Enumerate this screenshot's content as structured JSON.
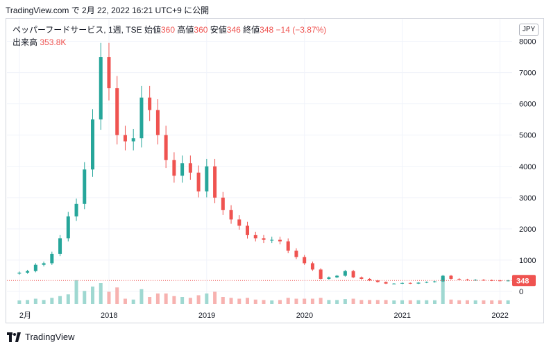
{
  "header": {
    "published": "TradingView.com で 2月 22, 2022 16:21 UTC+9 に公開"
  },
  "legend": {
    "symbol": "ペッパーフードサービス, 1週, TSE",
    "open_label": "始値",
    "open": "360",
    "high_label": "高値",
    "high": "360",
    "low_label": "安値",
    "low": "346",
    "close_label": "終値",
    "close": "348",
    "change": "−14 (−3.87%)",
    "volume_label": "出来高",
    "volume": "353.8K"
  },
  "currency": "JPY",
  "footer": {
    "brand": "TradingView"
  },
  "colors": {
    "up": "#26a69a",
    "down": "#ef5350",
    "grid": "#f0f3fa",
    "price_line": "#ef5350"
  },
  "chart_data": {
    "type": "candlestick",
    "y_ticks": [
      "0",
      "1000",
      "2000",
      "3000",
      "4000",
      "5000",
      "6000",
      "7000",
      "8000"
    ],
    "y_tick_values": [
      0,
      1000,
      2000,
      3000,
      4000,
      5000,
      6000,
      7000,
      8000
    ],
    "ylim": [
      -400,
      8700
    ],
    "x_ticks": [
      "2月",
      "2018",
      "2019",
      "2020",
      "2021",
      "2022"
    ],
    "x_tick_dates": [
      "2017-02",
      "2018-01",
      "2019-01",
      "2020-01",
      "2021-01",
      "2022-01"
    ],
    "xlim": [
      "2017-02",
      "2022-02"
    ],
    "last_price": "348",
    "series": [
      {
        "date": "2017-02",
        "close": 600
      },
      {
        "date": "2017-03",
        "close": 650
      },
      {
        "date": "2017-04",
        "close": 850
      },
      {
        "date": "2017-05",
        "close": 900
      },
      {
        "date": "2017-06",
        "close": 1200
      },
      {
        "date": "2017-07",
        "close": 1700
      },
      {
        "date": "2017-08",
        "close": 2400
      },
      {
        "date": "2017-09",
        "close": 2800
      },
      {
        "date": "2017-10",
        "close": 3900
      },
      {
        "date": "2017-11",
        "close": 5500
      },
      {
        "date": "2017-12",
        "close": 7500
      },
      {
        "date": "2018-01",
        "close": 6500
      },
      {
        "date": "2018-02",
        "close": 5000
      },
      {
        "date": "2018-03",
        "close": 4800
      },
      {
        "date": "2018-04",
        "close": 4900
      },
      {
        "date": "2018-05",
        "close": 6200
      },
      {
        "date": "2018-06",
        "close": 5800
      },
      {
        "date": "2018-07",
        "close": 5000
      },
      {
        "date": "2018-08",
        "close": 4200
      },
      {
        "date": "2018-09",
        "close": 3700
      },
      {
        "date": "2018-10",
        "close": 4100
      },
      {
        "date": "2018-11",
        "close": 3800
      },
      {
        "date": "2018-12",
        "close": 3200
      },
      {
        "date": "2019-01",
        "close": 4000
      },
      {
        "date": "2019-02",
        "close": 3000
      },
      {
        "date": "2019-03",
        "close": 2600
      },
      {
        "date": "2019-04",
        "close": 2300
      },
      {
        "date": "2019-05",
        "close": 2100
      },
      {
        "date": "2019-06",
        "close": 1800
      },
      {
        "date": "2019-07",
        "close": 1700
      },
      {
        "date": "2019-08",
        "close": 1650
      },
      {
        "date": "2019-09",
        "close": 1650
      },
      {
        "date": "2019-10",
        "close": 1600
      },
      {
        "date": "2019-11",
        "close": 1300
      },
      {
        "date": "2019-12",
        "close": 1100
      },
      {
        "date": "2020-01",
        "close": 900
      },
      {
        "date": "2020-02",
        "close": 700
      },
      {
        "date": "2020-03",
        "close": 400
      },
      {
        "date": "2020-04",
        "close": 450
      },
      {
        "date": "2020-05",
        "close": 500
      },
      {
        "date": "2020-06",
        "close": 650
      },
      {
        "date": "2020-07",
        "close": 450
      },
      {
        "date": "2020-08",
        "close": 400
      },
      {
        "date": "2020-09",
        "close": 350
      },
      {
        "date": "2020-10",
        "close": 300
      },
      {
        "date": "2020-11",
        "close": 250
      },
      {
        "date": "2020-12",
        "close": 250
      },
      {
        "date": "2021-01",
        "close": 270
      },
      {
        "date": "2021-02",
        "close": 250
      },
      {
        "date": "2021-03",
        "close": 280
      },
      {
        "date": "2021-04",
        "close": 300
      },
      {
        "date": "2021-05",
        "close": 320
      },
      {
        "date": "2021-06",
        "close": 500
      },
      {
        "date": "2021-07",
        "close": 400
      },
      {
        "date": "2021-08",
        "close": 380
      },
      {
        "date": "2021-09",
        "close": 360
      },
      {
        "date": "2021-10",
        "close": 370
      },
      {
        "date": "2021-11",
        "close": 360
      },
      {
        "date": "2021-12",
        "close": 350
      },
      {
        "date": "2022-01",
        "close": 340
      },
      {
        "date": "2022-02",
        "close": 348
      }
    ],
    "volume_spikes": [
      {
        "date": "2017-09",
        "level": 0.9
      },
      {
        "date": "2021-06",
        "level": 1.0
      }
    ]
  }
}
